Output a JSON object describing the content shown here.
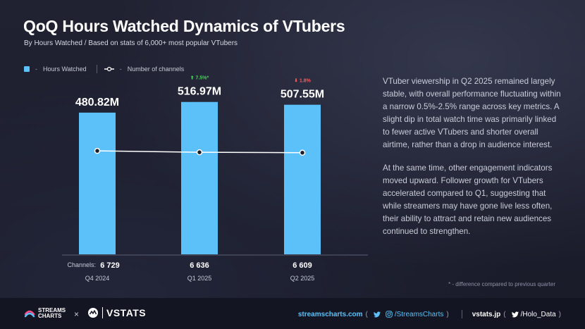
{
  "header": {
    "title": "QoQ Hours Watched Dynamics of VTubers",
    "subtitle": "By Hours Watched / Based on stats of 6,000+ most popular VTubers"
  },
  "legend": {
    "bar_label": "Hours Watched",
    "line_label": "Number of channels",
    "dash": "-"
  },
  "chart_data": {
    "type": "bar",
    "title": "QoQ Hours Watched Dynamics of VTubers",
    "categories": [
      "Q4 2024",
      "Q1 2025",
      "Q2 2025"
    ],
    "series": [
      {
        "name": "Hours Watched",
        "type": "bar",
        "values": [
          480.82,
          516.97,
          507.55
        ],
        "value_labels": [
          "480.82M",
          "516.97M",
          "507.55M"
        ],
        "color": "#5bc1f8"
      },
      {
        "name": "Number of channels",
        "type": "line",
        "values": [
          6729,
          6636,
          6609
        ],
        "value_labels": [
          "6 729",
          "6 636",
          "6 609"
        ],
        "color": "#ffffff"
      }
    ],
    "changes": [
      null,
      {
        "label": "7.5%*",
        "direction": "up",
        "arrow": "⬆"
      },
      {
        "label": "1.8%",
        "direction": "down",
        "arrow": "⬇"
      }
    ],
    "channels_prefix": "Channels:",
    "ylim_bars": [
      0,
      600
    ],
    "ylim_line": [
      0,
      11500
    ],
    "grid": false,
    "legend_position": "top-left",
    "colors": {
      "up": "#49d15b",
      "down": "#ff5a5a"
    }
  },
  "commentary": {
    "p1": "VTuber viewership in Q2 2025 remained largely stable, with overall performance fluctuating within a narrow 0.5%-2.5% range across key metrics. A slight dip in total watch time was primarily linked to fewer active VTubers and shorter overall airtime, rather than a drop in audience interest.",
    "p2": "At the same time, other engagement indicators moved upward. Follower growth for VTubers accelerated compared to Q1, suggesting that while streamers may have gone live less often, their ability to attract and retain new audiences continued to strengthen.",
    "footnote": "* - difference compared to previous quarter"
  },
  "footer": {
    "brand1_line1": "STREAMS",
    "brand1_line2": "CHARTS",
    "times": "×",
    "brand2": "VSTATS",
    "site1": "streamscharts.com",
    "handle1": "/StreamsCharts",
    "site2": "vstats.jp",
    "handle2": "/Holo_Data",
    "paren_open": "(",
    "paren_close": ")",
    "icons": [
      "twitter-icon",
      "instagram-icon",
      "twitter-icon"
    ]
  }
}
